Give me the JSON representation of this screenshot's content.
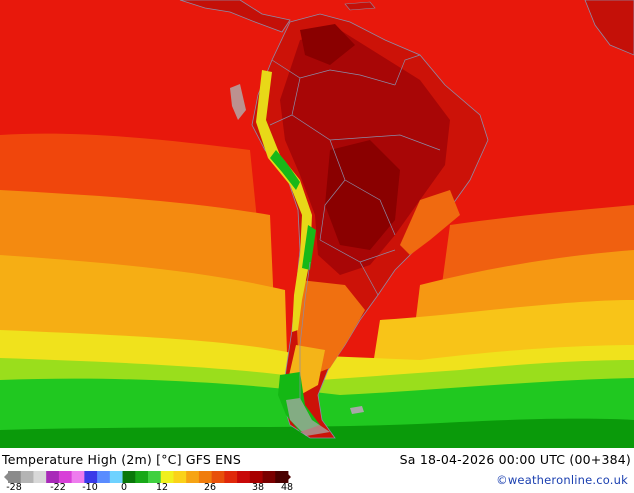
{
  "map": {
    "colors": {
      "ocean_hot": "#e8180c",
      "ocean_warm": "#f05a0a",
      "ocean_orange": "#f7960f",
      "ocean_yellow": "#f8c814",
      "cold_green": "#18cc18",
      "deep_green": "#0a9a0a",
      "land_hot": "#b80808",
      "land_darkest": "#8a0000",
      "andes_cool": "#e8d818",
      "border": "#8c8ca8"
    }
  },
  "footer": {
    "title": "Temperature High (2m) [°C] GFS ENS",
    "valid": "Sa 18-04-2026 00:00 UTC (00+384)",
    "credit": "©weatheronline.co.uk"
  },
  "legend": {
    "ticks": [
      "-28",
      "-22",
      "-10",
      "0",
      "12",
      "26",
      "38",
      "48"
    ],
    "colors": [
      "#8a8a8a",
      "#b4b4b4",
      "#d8d8d8",
      "#a82ab8",
      "#d840d8",
      "#ee7cee",
      "#3a3ae8",
      "#5a8cff",
      "#6ed2ff",
      "#0a780a",
      "#18a818",
      "#40d040",
      "#f0f01e",
      "#fad21a",
      "#f6a414",
      "#f07c0c",
      "#e8500a",
      "#e0280a",
      "#c80808",
      "#a80000",
      "#7a0000",
      "#4a0000"
    ]
  }
}
